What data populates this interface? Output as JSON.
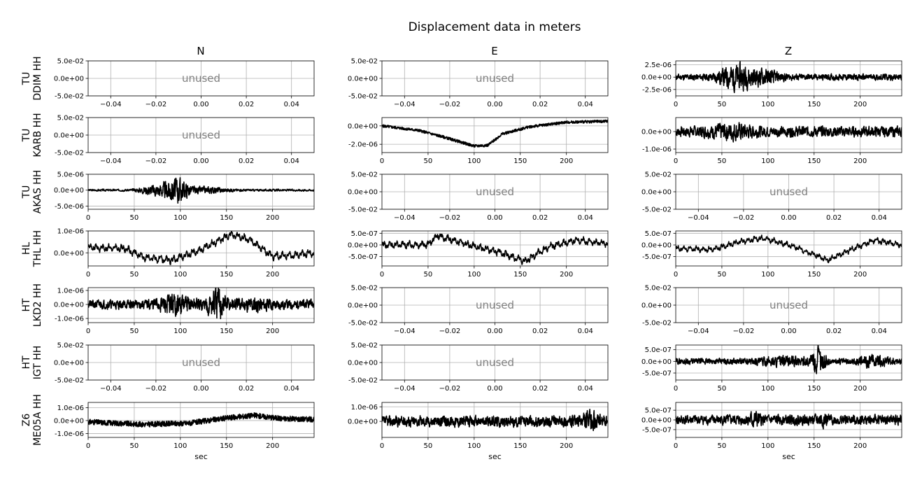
{
  "figure": {
    "title": "Displacement data in meters",
    "columns": [
      "N",
      "E",
      "Z"
    ],
    "xlabel": "sec",
    "unused_label": "unused"
  },
  "chart_data": {
    "type": "line",
    "title": "Displacement data in meters",
    "ylabel_unit": "meters",
    "grid": true,
    "rows": [
      {
        "network": "TU",
        "station": "DDIM HH",
        "panels": [
          {
            "component": "N",
            "status": "unused",
            "xlim": [
              -0.05,
              0.05
            ],
            "ylim": [
              -0.05,
              0.05
            ],
            "xticks": [
              "−0.04",
              "−0.02",
              "0.00",
              "0.02",
              "0.04"
            ],
            "yticks": [
              "5.0e-02",
              "0.0e+00",
              "-5.0e-02"
            ]
          },
          {
            "component": "E",
            "status": "unused",
            "xlim": [
              -0.05,
              0.05
            ],
            "ylim": [
              -0.05,
              0.05
            ],
            "xticks": [
              "−0.04",
              "−0.02",
              "0.00",
              "0.02",
              "0.04"
            ],
            "yticks": [
              "5.0e-02",
              "0.0e+00",
              "-5.0e-02"
            ]
          },
          {
            "component": "Z",
            "status": "data",
            "xlim": [
              0,
              245
            ],
            "ylim": [
              -3.8e-06,
              3.3e-06
            ],
            "xticks": [
              "0",
              "50",
              "100",
              "150",
              "200"
            ],
            "yticks": [
              "2.5e-06",
              "0.0e+00",
              "-2.5e-06"
            ],
            "signal": {
              "kind": "noise",
              "base_amp": 6e-07,
              "bursts": [
                {
                  "t": 65,
                  "w": 25,
                  "amp": 2e-06
                },
                {
                  "t": 95,
                  "w": 25,
                  "amp": 1e-06
                }
              ],
              "seed": 11
            }
          }
        ]
      },
      {
        "network": "TU",
        "station": "KARB HH",
        "panels": [
          {
            "component": "N",
            "status": "unused",
            "xlim": [
              -0.05,
              0.05
            ],
            "ylim": [
              -0.05,
              0.05
            ],
            "xticks": [
              "−0.04",
              "−0.02",
              "0.00",
              "0.02",
              "0.04"
            ],
            "yticks": [
              "5.0e-02",
              "0.0e+00",
              "-5.0e-02"
            ]
          },
          {
            "component": "E",
            "status": "data",
            "xlim": [
              0,
              245
            ],
            "ylim": [
              -2.9e-06,
              9e-07
            ],
            "xticks": [
              "0",
              "50",
              "100",
              "150",
              "200"
            ],
            "yticks": [
              "0.0e+00",
              "-2.0e-06"
            ],
            "signal": {
              "kind": "trend",
              "points": [
                [
                  0,
                  0.0
                ],
                [
                  40,
                  -5e-07
                ],
                [
                  70,
                  -1.3e-06
                ],
                [
                  100,
                  -2.2e-06
                ],
                [
                  115,
                  -2.1e-06
                ],
                [
                  130,
                  -9e-07
                ],
                [
                  160,
                  -1e-07
                ],
                [
                  200,
                  4e-07
                ],
                [
                  245,
                  5e-07
                ]
              ],
              "noise_amp": 2.5e-07,
              "seed": 5
            }
          },
          {
            "component": "Z",
            "status": "data",
            "xlim": [
              0,
              245
            ],
            "ylim": [
              -1.2e-06,
              8e-07
            ],
            "xticks": [
              "0",
              "50",
              "100",
              "150",
              "200"
            ],
            "yticks": [
              "0.0e+00",
              "-1.0e-06"
            ],
            "signal": {
              "kind": "noise",
              "base_amp": 2.8e-07,
              "bursts": [
                {
                  "t": 60,
                  "w": 30,
                  "amp": 2.5e-07
                }
              ],
              "seed": 7
            }
          }
        ]
      },
      {
        "network": "TU",
        "station": "AKAS HH",
        "panels": [
          {
            "component": "N",
            "status": "data",
            "xlim": [
              0,
              245
            ],
            "ylim": [
              -6e-06,
              5e-06
            ],
            "xticks": [
              "0",
              "50",
              "100",
              "150",
              "200"
            ],
            "yticks": [
              "5.0e-06",
              "0.0e+00",
              "-5.0e-06"
            ],
            "signal": {
              "kind": "noise",
              "base_amp": 3e-07,
              "bursts": [
                {
                  "t": 95,
                  "w": 20,
                  "amp": 3.5e-06
                },
                {
                  "t": 70,
                  "w": 20,
                  "amp": 1.2e-06
                },
                {
                  "t": 130,
                  "w": 30,
                  "amp": 8e-07
                }
              ],
              "seed": 3
            }
          },
          {
            "component": "E",
            "status": "unused",
            "xlim": [
              -0.05,
              0.05
            ],
            "ylim": [
              -0.05,
              0.05
            ],
            "xticks": [
              "−0.04",
              "−0.02",
              "0.00",
              "0.02",
              "0.04"
            ],
            "yticks": [
              "5.0e-02",
              "0.0e+00",
              "-5.0e-02"
            ]
          },
          {
            "component": "Z",
            "status": "unused",
            "xlim": [
              -0.05,
              0.05
            ],
            "ylim": [
              -0.05,
              0.05
            ],
            "xticks": [
              "−0.04",
              "−0.02",
              "0.00",
              "0.02",
              "0.04"
            ],
            "yticks": [
              "5.0e-02",
              "0.0e+00",
              "-5.0e-02"
            ]
          }
        ]
      },
      {
        "network": "HL",
        "station": "THL HH",
        "panels": [
          {
            "component": "N",
            "status": "data",
            "xlim": [
              0,
              245
            ],
            "ylim": [
              -6e-07,
              1e-06
            ],
            "xticks": [
              "0",
              "50",
              "100",
              "150",
              "200"
            ],
            "yticks": [
              "1.0e-06",
              "0.0e+00"
            ],
            "signal": {
              "kind": "trend",
              "points": [
                [
                  0,
                  2.5e-07
                ],
                [
                  40,
                  2e-07
                ],
                [
                  60,
                  -2e-07
                ],
                [
                  90,
                  -3.5e-07
                ],
                [
                  120,
                  1e-07
                ],
                [
                  155,
                  8.5e-07
                ],
                [
                  175,
                  6e-07
                ],
                [
                  200,
                  -1.5e-07
                ],
                [
                  225,
                  -1e-07
                ],
                [
                  245,
                  0.0
                ]
              ],
              "noise_amp": 1.2e-07,
              "wave_amp": 1.2e-07,
              "seed": 9
            }
          },
          {
            "component": "E",
            "status": "data",
            "xlim": [
              0,
              245
            ],
            "ylim": [
              -9e-07,
              6e-07
            ],
            "xticks": [
              "0",
              "50",
              "100",
              "150",
              "200"
            ],
            "yticks": [
              "5.0e-07",
              "0.0e+00",
              "-5.0e-07"
            ],
            "signal": {
              "kind": "trend",
              "points": [
                [
                  0,
                  0.0
                ],
                [
                  50,
                  2e-08
                ],
                [
                  60,
                  4e-07
                ],
                [
                  90,
                  5e-08
                ],
                [
                  130,
                  -3.5e-07
                ],
                [
                  155,
                  -7e-07
                ],
                [
                  180,
                  -1e-07
                ],
                [
                  210,
                  2e-07
                ],
                [
                  245,
                  5e-08
                ]
              ],
              "noise_amp": 1.2e-07,
              "wave_amp": 1e-07,
              "seed": 13
            }
          },
          {
            "component": "Z",
            "status": "data",
            "xlim": [
              0,
              245
            ],
            "ylim": [
              -9e-07,
              6e-07
            ],
            "xticks": [
              "0",
              "50",
              "100",
              "150",
              "200"
            ],
            "yticks": [
              "5.0e-07",
              "0.0e+00",
              "-5.0e-07"
            ],
            "signal": {
              "kind": "trend",
              "points": [
                [
                  0,
                  -1.5e-07
                ],
                [
                  40,
                  -2e-07
                ],
                [
                  70,
                  1.5e-07
                ],
                [
                  95,
                  3e-07
                ],
                [
                  130,
                  -1e-07
                ],
                [
                  165,
                  -6.5e-07
                ],
                [
                  190,
                  -2e-07
                ],
                [
                  215,
                  2e-07
                ],
                [
                  245,
                  0.0
                ]
              ],
              "noise_amp": 9e-08,
              "wave_amp": 8e-08,
              "seed": 17
            }
          }
        ]
      },
      {
        "network": "HT",
        "station": "LKD2 HH",
        "panels": [
          {
            "component": "N",
            "status": "data",
            "xlim": [
              0,
              245
            ],
            "ylim": [
              -1.3e-06,
              1.2e-06
            ],
            "xticks": [
              "0",
              "50",
              "100",
              "150",
              "200"
            ],
            "yticks": [
              "1.0e-06",
              "0.0e+00",
              "-1.0e-06"
            ],
            "signal": {
              "kind": "noise",
              "base_amp": 3e-07,
              "bursts": [
                {
                  "t": 140,
                  "w": 14,
                  "amp": 9e-07
                },
                {
                  "t": 95,
                  "w": 30,
                  "amp": 4.5e-07
                },
                {
                  "t": 180,
                  "w": 25,
                  "amp": 2.5e-07
                }
              ],
              "seed": 21
            }
          },
          {
            "component": "E",
            "status": "unused",
            "xlim": [
              -0.05,
              0.05
            ],
            "ylim": [
              -0.05,
              0.05
            ],
            "xticks": [
              "−0.04",
              "−0.02",
              "0.00",
              "0.02",
              "0.04"
            ],
            "yticks": [
              "5.0e-02",
              "0.0e+00",
              "-5.0e-02"
            ]
          },
          {
            "component": "Z",
            "status": "unused",
            "xlim": [
              -0.05,
              0.05
            ],
            "ylim": [
              -0.05,
              0.05
            ],
            "xticks": [
              "−0.04",
              "−0.02",
              "0.00",
              "0.02",
              "0.04"
            ],
            "yticks": [
              "5.0e-02",
              "0.0e+00",
              "-5.0e-02"
            ]
          }
        ]
      },
      {
        "network": "HT",
        "station": "IGT HH",
        "panels": [
          {
            "component": "N",
            "status": "unused",
            "xlim": [
              -0.05,
              0.05
            ],
            "ylim": [
              -0.05,
              0.05
            ],
            "xticks": [
              "−0.04",
              "−0.02",
              "0.00",
              "0.02",
              "0.04"
            ],
            "yticks": [
              "5.0e-02",
              "0.0e+00",
              "-5.0e-02"
            ]
          },
          {
            "component": "E",
            "status": "unused",
            "xlim": [
              -0.05,
              0.05
            ],
            "ylim": [
              -0.05,
              0.05
            ],
            "xticks": [
              "−0.04",
              "−0.02",
              "0.00",
              "0.02",
              "0.04"
            ],
            "yticks": [
              "5.0e-02",
              "0.0e+00",
              "-5.0e-02"
            ]
          },
          {
            "component": "Z",
            "status": "data",
            "xlim": [
              0,
              245
            ],
            "ylim": [
              -8e-07,
              7e-07
            ],
            "xticks": [
              "0",
              "50",
              "100",
              "150",
              "200"
            ],
            "yticks": [
              "5.0e-07",
              "0.0e+00",
              "-5.0e-07"
            ],
            "signal": {
              "kind": "noise",
              "base_amp": 1.2e-07,
              "bursts": [
                {
                  "t": 155,
                  "w": 10,
                  "amp": 4.5e-07
                },
                {
                  "t": 120,
                  "w": 40,
                  "amp": 1.2e-07
                },
                {
                  "t": 215,
                  "w": 25,
                  "amp": 1.5e-07
                }
              ],
              "seed": 29
            }
          }
        ]
      },
      {
        "network": "Z6",
        "station": "ME05A HH",
        "panels": [
          {
            "component": "N",
            "status": "data",
            "xlim": [
              0,
              245
            ],
            "ylim": [
              -1.3e-06,
              1.4e-06
            ],
            "xticks": [
              "0",
              "50",
              "100",
              "150",
              "200"
            ],
            "yticks": [
              "1.0e-06",
              "0.0e+00",
              "-1.0e-06"
            ],
            "signal": {
              "kind": "trend",
              "points": [
                [
                  0,
                  -1e-07
                ],
                [
                  60,
                  -3e-07
                ],
                [
                  110,
                  -2e-07
                ],
                [
                  150,
                  2e-07
                ],
                [
                  180,
                  4e-07
                ],
                [
                  210,
                  1.5e-07
                ],
                [
                  245,
                  1e-07
                ]
              ],
              "noise_amp": 3.5e-07,
              "seed": 31
            }
          },
          {
            "component": "E",
            "status": "data",
            "xlim": [
              0,
              245
            ],
            "ylim": [
              -1.1e-06,
              1.3e-06
            ],
            "xticks": [
              "0",
              "50",
              "100",
              "150",
              "200"
            ],
            "yticks": [
              "1.0e-06",
              "0.0e+00"
            ],
            "signal": {
              "kind": "noise",
              "base_amp": 3.5e-07,
              "bursts": [
                {
                  "t": 225,
                  "w": 12,
                  "amp": 4e-07
                }
              ],
              "seed": 37
            }
          },
          {
            "component": "Z",
            "status": "data",
            "xlim": [
              0,
              245
            ],
            "ylim": [
              -9e-07,
              9e-07
            ],
            "xticks": [
              "0",
              "50",
              "100",
              "150",
              "200"
            ],
            "yticks": [
              "5.0e-07",
              "0.0e+00",
              "-5.0e-07"
            ],
            "signal": {
              "kind": "noise",
              "base_amp": 2.4e-07,
              "bursts": [
                {
                  "t": 85,
                  "w": 8,
                  "amp": 2.5e-07
                },
                {
                  "t": 160,
                  "w": 10,
                  "amp": 1.5e-07
                }
              ],
              "seed": 41
            }
          }
        ]
      }
    ]
  }
}
